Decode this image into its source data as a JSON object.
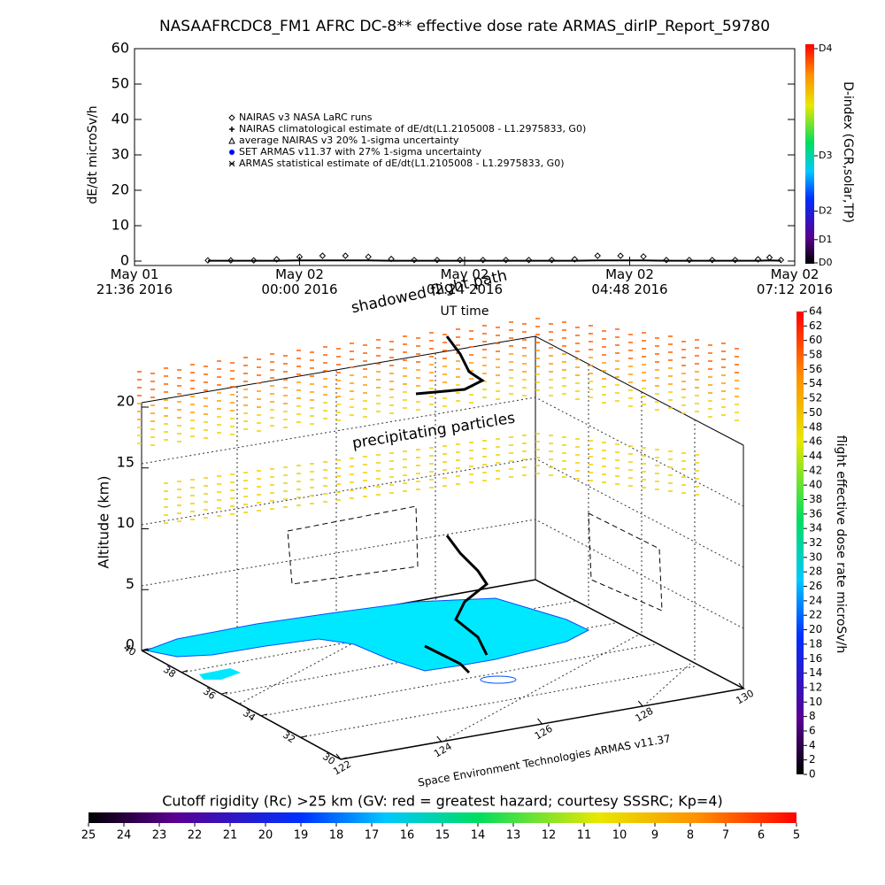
{
  "chart_data": [
    {
      "type": "line",
      "title": "NASAAFRCDC8_FM1 AFRC DC-8** effective dose rate ARMAS_dirIP_Report_59780",
      "x_label": "UT time",
      "y_label": "dE/dt microSv/h",
      "xlim": [
        "2016-05-01T21:36",
        "2016-05-02T07:12"
      ],
      "xticks": [
        {
          "value": "2016-05-01T21:36",
          "label": "May 01\n21:36 2016"
        },
        {
          "value": "2016-05-02T00:00",
          "label": "May 02\n00:00 2016"
        },
        {
          "value": "2016-05-02T02:24",
          "label": "May 02\n02:24 2016"
        },
        {
          "value": "2016-05-02T04:48",
          "label": "May 02\n04:48 2016"
        },
        {
          "value": "2016-05-02T07:12",
          "label": "May 02\n07:12 2016"
        }
      ],
      "ylim": [
        0,
        60
      ],
      "yticks": [
        0,
        10,
        20,
        30,
        40,
        50,
        60
      ],
      "x": [
        "2016-05-01T22:40",
        "2016-05-01T23:00",
        "2016-05-01T23:20",
        "2016-05-01T23:40",
        "2016-05-02T00:00",
        "2016-05-02T00:20",
        "2016-05-02T00:40",
        "2016-05-02T01:00",
        "2016-05-02T01:20",
        "2016-05-02T01:40",
        "2016-05-02T02:00",
        "2016-05-02T02:20",
        "2016-05-02T02:40",
        "2016-05-02T03:00",
        "2016-05-02T03:20",
        "2016-05-02T03:40",
        "2016-05-02T04:00",
        "2016-05-02T04:20",
        "2016-05-02T04:40",
        "2016-05-02T05:00",
        "2016-05-02T05:20",
        "2016-05-02T05:40",
        "2016-05-02T06:00",
        "2016-05-02T06:20",
        "2016-05-02T06:40",
        "2016-05-02T06:50",
        "2016-05-02T07:00"
      ],
      "series": [
        {
          "name": "NAIRAS v3 NASA LaRC runs",
          "marker": "diamond",
          "color": "#000000",
          "values": [
            0.2,
            0.2,
            0.2,
            0.5,
            1.2,
            1.5,
            1.5,
            1.2,
            0.6,
            0.3,
            0.3,
            0.3,
            0.3,
            0.3,
            0.3,
            0.3,
            0.5,
            1.5,
            1.5,
            1.3,
            0.3,
            0.3,
            0.3,
            0.3,
            0.5,
            1.0,
            0.3
          ]
        },
        {
          "name": "NAIRAS climatological estimate of dE/dt(L1.2105008 - L1.2975833, G0)",
          "marker": "plus",
          "color": "#000000"
        },
        {
          "name": "average NAIRAS v3 20% 1-sigma uncertainty",
          "marker": "triangle",
          "color": "#000000"
        },
        {
          "name": "SET ARMAS v11.37 with 27% 1-sigma uncertainty",
          "marker": "dot",
          "color": "#0000ff"
        },
        {
          "name": "ARMAS statistical estimate of dE/dt(L1.2105008 - L1.2975833, G0)",
          "marker": "line",
          "color": "#000000",
          "values": [
            0.1,
            0.1,
            0.1,
            0.1,
            0.2,
            0.2,
            0.2,
            0.2,
            0.1,
            0.1,
            0.1,
            0.1,
            0.1,
            0.1,
            0.1,
            0.1,
            0.1,
            0.2,
            0.2,
            0.2,
            0.1,
            0.1,
            0.1,
            0.1,
            0.1,
            0.2,
            0.1
          ]
        }
      ],
      "colorbar": {
        "label": "D-index (GCR,solar,TP)",
        "lim": [
          0,
          60
        ],
        "ticks": [
          {
            "value": 0,
            "label": "D0"
          },
          {
            "value": 6.5,
            "label": "D1"
          },
          {
            "value": 14.5,
            "label": "D2"
          },
          {
            "value": 30,
            "label": "D3"
          },
          {
            "value": 60,
            "label": "D4"
          }
        ]
      }
    },
    {
      "type": "surface3d",
      "z_label": "Altitude (km)",
      "zlim": [
        0,
        20
      ],
      "zticks": [
        0,
        5,
        10,
        15,
        20
      ],
      "ylim": [
        30,
        40
      ],
      "yticks": [
        30,
        32,
        34,
        36,
        38,
        40
      ],
      "xlim": [
        122,
        130
      ],
      "xticks": [
        122,
        124,
        126,
        128,
        130
      ],
      "annotations": [
        "shadowed flight path",
        "precipitating particles",
        "Space Environment Technologies ARMAS v11.37"
      ],
      "colorbar": {
        "label": "flight effective dose rate microSv/h",
        "lim": [
          0,
          64
        ],
        "ticks": [
          0,
          2,
          4,
          6,
          8,
          10,
          12,
          14,
          16,
          18,
          20,
          22,
          24,
          26,
          28,
          30,
          32,
          34,
          36,
          38,
          40,
          42,
          44,
          46,
          48,
          50,
          52,
          54,
          56,
          58,
          60,
          62,
          64
        ]
      },
      "colorbar2": {
        "label": "Cutoff rigidity (Rc) >25 km (GV: red = greatest hazard; courtesy SSSRC; Kp=4)",
        "lim": [
          25,
          5
        ],
        "ticks": [
          25,
          24,
          23,
          22,
          21,
          20,
          19,
          18,
          17,
          16,
          15,
          14,
          13,
          12,
          11,
          10,
          9,
          8,
          7,
          6,
          5
        ]
      }
    }
  ]
}
